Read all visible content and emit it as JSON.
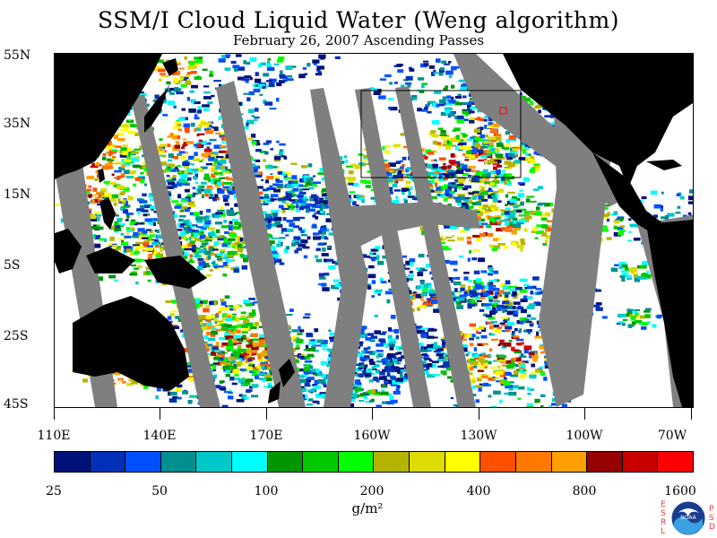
{
  "title": "SSM/I Cloud Liquid Water (Weng algorithm)",
  "subtitle": "February 26, 2007  Ascending Passes",
  "lat_labels": [
    "55N",
    "35N",
    "15N",
    "5S",
    "25S",
    "45S"
  ],
  "lon_labels": [
    "110E",
    "140E",
    "170E",
    "160W",
    "130W",
    "100W",
    "70W"
  ],
  "colorbar": {
    "labels": [
      "25",
      "50",
      "100",
      "200",
      "400",
      "800",
      "1600"
    ],
    "colors": [
      "#00127a",
      "#0030b8",
      "#0050ff",
      "#009090",
      "#00c8c8",
      "#00ffff",
      "#009600",
      "#00c800",
      "#00ff00",
      "#b4b400",
      "#dcdc00",
      "#ffff00",
      "#ff5000",
      "#ff7800",
      "#ffa000",
      "#960000",
      "#c80000",
      "#ff0000"
    ],
    "units": "g/m²"
  },
  "logo": {
    "icon": "noaa-logo-icon",
    "text": "NOAA",
    "esrl": [
      "E",
      "S",
      "R",
      "L"
    ],
    "psd": [
      "P",
      "S",
      "D"
    ]
  },
  "colors": {
    "land": "#000000",
    "no_data": "#7f7f7f",
    "clear": "#ffffff"
  }
}
